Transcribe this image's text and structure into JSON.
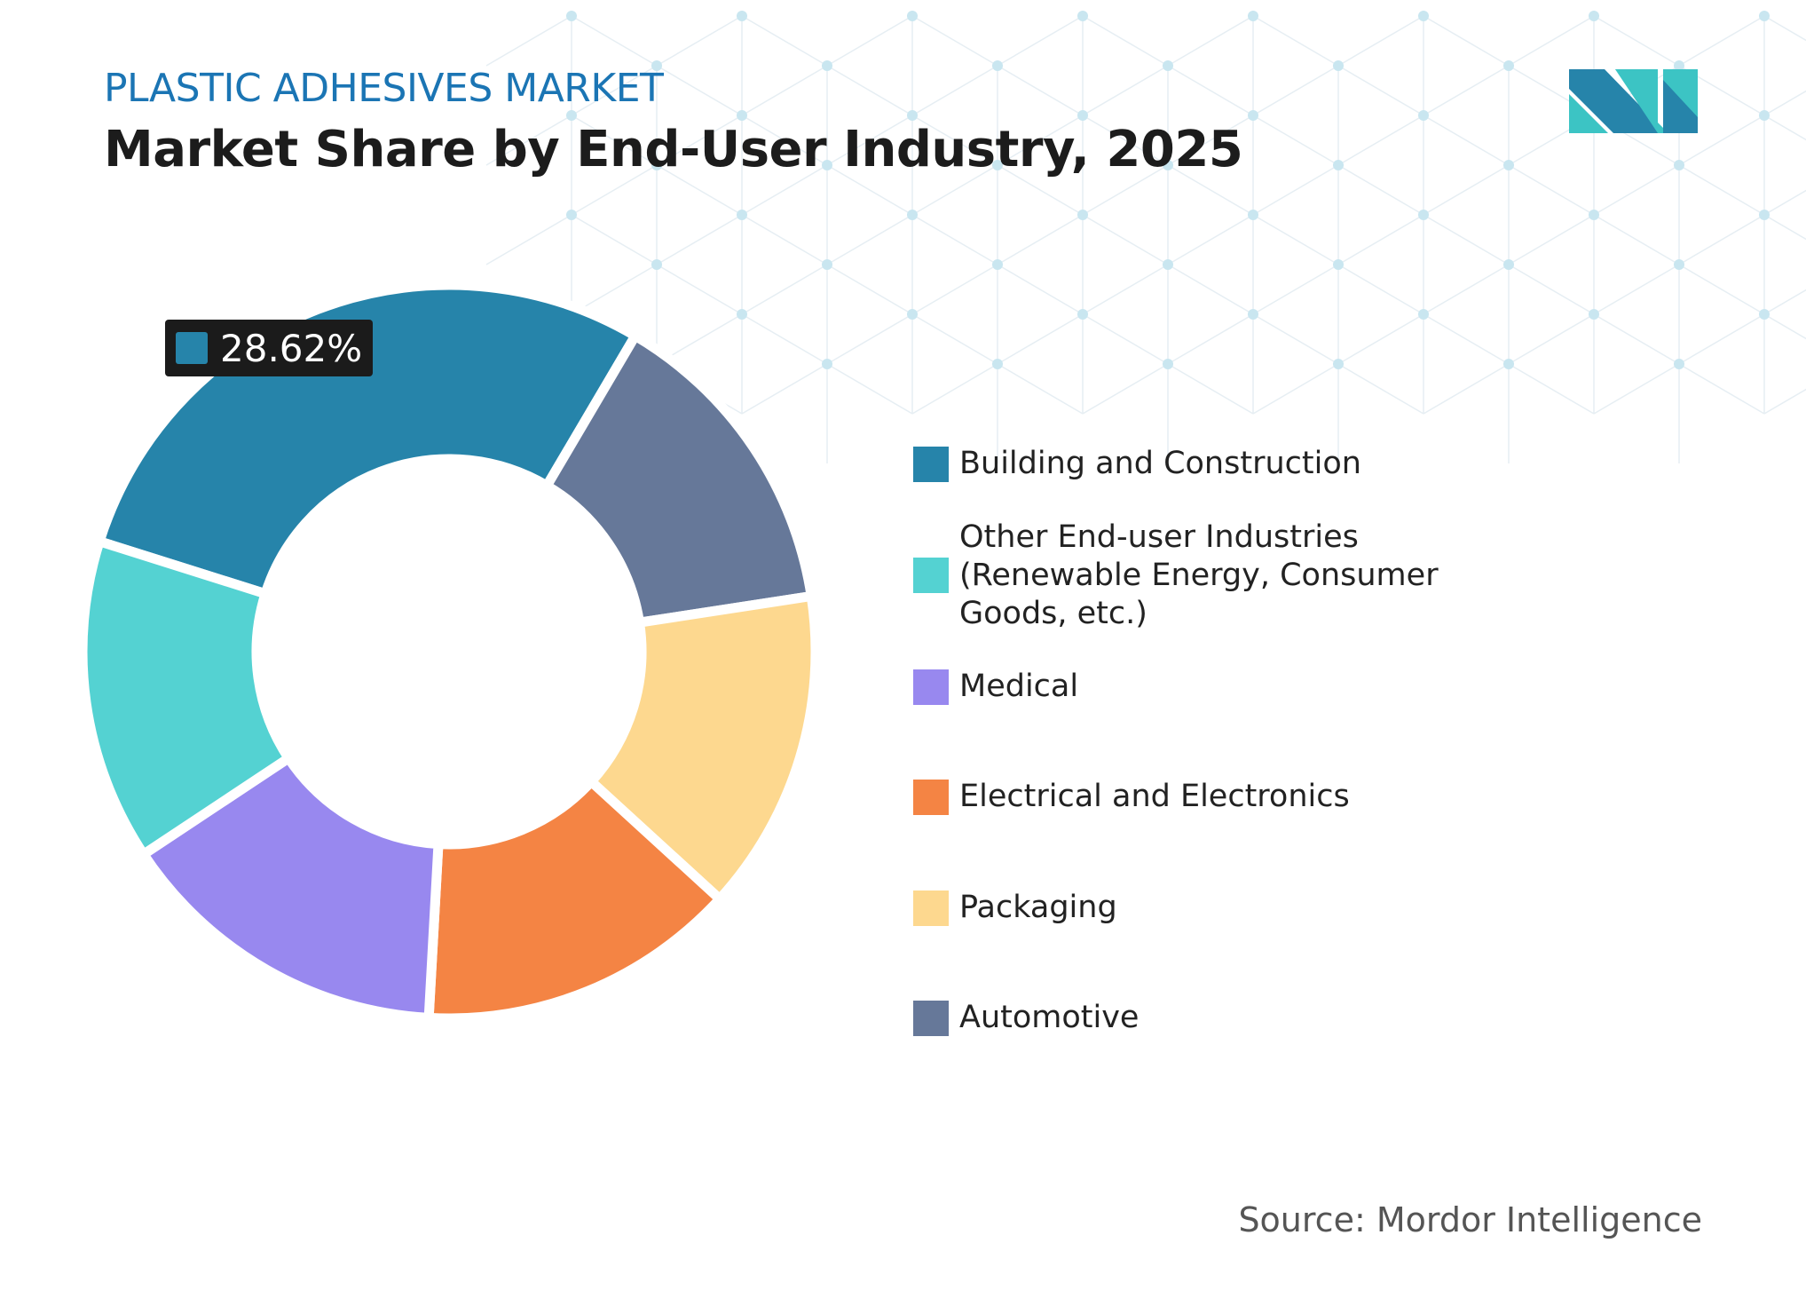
{
  "header": {
    "subtitle": "PLASTIC ADHESIVES MARKET",
    "title": "Market Share by End-User Industry, 2025"
  },
  "tooltip": {
    "value": "28.62%",
    "color": "#2684aa"
  },
  "source": "Source: Mordor Intelligence",
  "logo": {
    "colors": [
      "#2684aa",
      "#3cc4c4"
    ]
  },
  "chart_data": {
    "type": "pie",
    "donut": true,
    "title": "Market Share by End-User Industry, 2025",
    "legend_placement": "right",
    "slices": [
      {
        "name": "Building and Construction",
        "value": 28.62,
        "color": "#2684aa"
      },
      {
        "name": "Automotive",
        "value": 14.1,
        "color": "#667899"
      },
      {
        "name": "Packaging",
        "value": 14.2,
        "color": "#fdd88f"
      },
      {
        "name": "Electrical and Electronics",
        "value": 14.1,
        "color": "#f48444"
      },
      {
        "name": "Medical",
        "value": 14.8,
        "color": "#9888ef"
      },
      {
        "name": "Other End-user Industries (Renewable Energy, Consumer Goods, etc.)",
        "value": 14.18,
        "color": "#54d2d2"
      }
    ],
    "legend": [
      {
        "label": "Building and Construction",
        "color": "#2684aa"
      },
      {
        "label": "Other End-user Industries (Renewable Energy, Consumer Goods, etc.)",
        "color": "#54d2d2"
      },
      {
        "label": "Medical",
        "color": "#9888ef"
      },
      {
        "label": "Electrical and Electronics",
        "color": "#f48444"
      },
      {
        "label": "Packaging",
        "color": "#fdd88f"
      },
      {
        "label": "Automotive",
        "color": "#667899"
      }
    ]
  }
}
